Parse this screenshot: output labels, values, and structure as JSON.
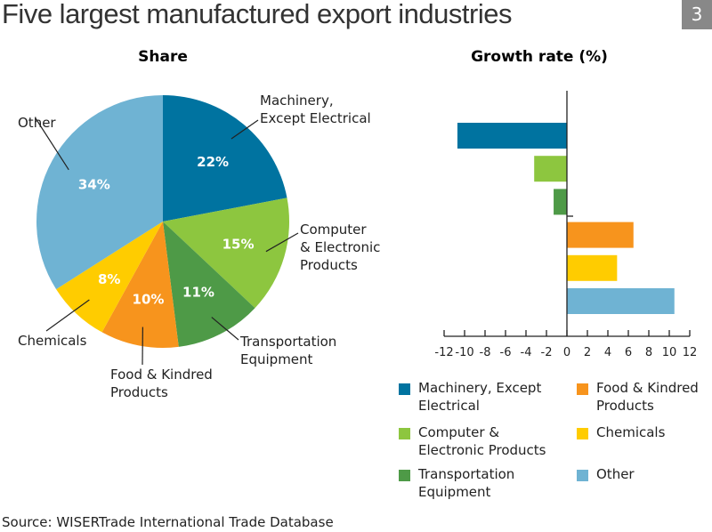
{
  "title": "Five largest manufactured export industries",
  "badge": "3",
  "source": "Source: WISERTrade International Trade Database",
  "chart_data": [
    {
      "type": "pie",
      "title": "Share",
      "slices": [
        {
          "label": "Machinery, Except Electrical",
          "value": 22,
          "display": "22%",
          "color": "#0073a0"
        },
        {
          "label": "Computer & Electronic Products",
          "value": 15,
          "display": "15%",
          "color": "#8dc63f"
        },
        {
          "label": "Transportation Equipment",
          "value": 11,
          "display": "11%",
          "color": "#4e9a47"
        },
        {
          "label": "Food & Kindred Products",
          "value": 10,
          "display": "10%",
          "color": "#f7941d"
        },
        {
          "label": "Chemicals",
          "value": 8,
          "display": "8%",
          "color": "#ffcc00"
        },
        {
          "label": "Other",
          "value": 34,
          "display": "34%",
          "color": "#6fb3d3"
        }
      ]
    },
    {
      "type": "bar",
      "orientation": "horizontal",
      "title": "Growth rate (%)",
      "categories": [
        "Machinery, Except Electrical",
        "Computer & Electronic Products",
        "Transportation Equipment",
        "Food & Kindred Products",
        "Chemicals",
        "Other"
      ],
      "values": [
        -10.7,
        -3.2,
        -1.3,
        6.5,
        4.9,
        10.5
      ],
      "colors": [
        "#0073a0",
        "#8dc63f",
        "#4e9a47",
        "#f7941d",
        "#ffcc00",
        "#6fb3d3"
      ],
      "xlim": [
        -12,
        12
      ],
      "xticks": [
        "-12",
        "-10",
        "-8",
        "-6",
        "-4",
        "-2",
        "0",
        "2",
        "4",
        "6",
        "8",
        "10",
        "12"
      ],
      "legend_position": "bottom"
    }
  ],
  "pie_labels": [
    [
      "Machinery,",
      "Except Electrical"
    ],
    [
      "Computer",
      "& Electronic",
      "Products"
    ],
    [
      "Transportation",
      "Equipment"
    ],
    [
      "Food & Kindred",
      "Products"
    ],
    [
      "Chemicals"
    ],
    [
      "Other"
    ]
  ],
  "legend": [
    [
      "Machinery, Except",
      "Electrical"
    ],
    [
      "Computer &",
      "Electronic Products"
    ],
    [
      "Transportation",
      "Equipment"
    ],
    [
      "Food & Kindred",
      "Products"
    ],
    [
      "Chemicals"
    ],
    [
      "Other"
    ]
  ]
}
